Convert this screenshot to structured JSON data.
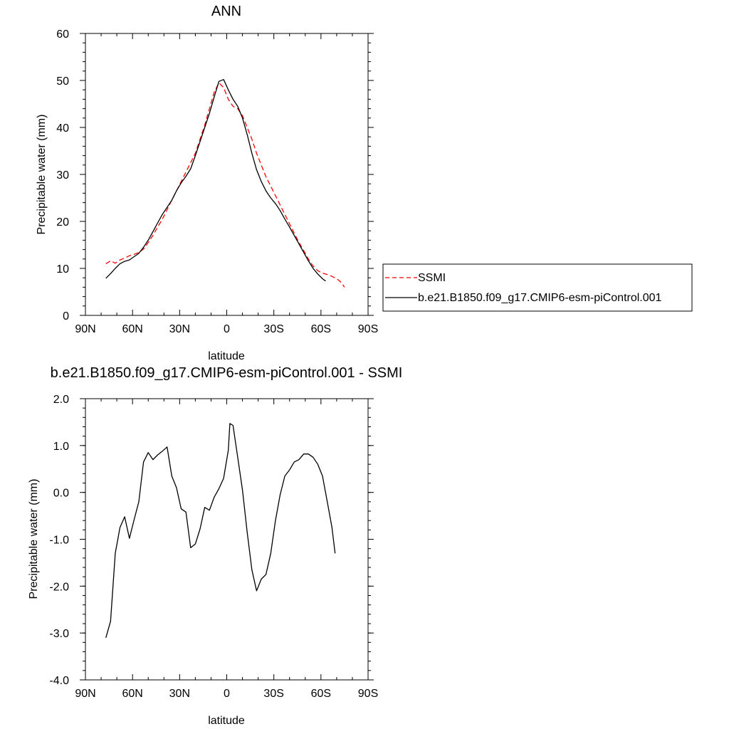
{
  "chart_data": [
    {
      "type": "line",
      "title": "ANN",
      "xlabel": "latitude",
      "ylabel": "Precipitable water (mm)",
      "xlim": [
        90,
        -90
      ],
      "ylim": [
        0,
        60
      ],
      "x_ticks": [
        90,
        60,
        30,
        0,
        -30,
        -60,
        -90
      ],
      "x_tick_labels": [
        "90N",
        "60N",
        "30N",
        "0",
        "30S",
        "60S",
        "90S"
      ],
      "y_ticks": [
        0,
        10,
        20,
        30,
        40,
        50,
        60
      ],
      "y_tick_labels": [
        "0",
        "10",
        "20",
        "30",
        "40",
        "50",
        "60"
      ],
      "grid": false,
      "legend_position": "right",
      "series": [
        {
          "name": "SSMI",
          "color": "#ff0000",
          "dash": "dashed",
          "points": [
            [
              77,
              11.0
            ],
            [
              74,
              11.6
            ],
            [
              71,
              11.1
            ],
            [
              68,
              11.8
            ],
            [
              65,
              12.2
            ],
            [
              62,
              12.7
            ],
            [
              59,
              13.0
            ],
            [
              56,
              13.4
            ],
            [
              53,
              14.1
            ],
            [
              50,
              15.5
            ],
            [
              47,
              17.0
            ],
            [
              44,
              18.8
            ],
            [
              41,
              20.5
            ],
            [
              38,
              22.5
            ],
            [
              35,
              24.5
            ],
            [
              32,
              26.5
            ],
            [
              29,
              28.5
            ],
            [
              26,
              30.5
            ],
            [
              23,
              32.5
            ],
            [
              20,
              34.5
            ],
            [
              17,
              37.5
            ],
            [
              14,
              40.5
            ],
            [
              11,
              44.0
            ],
            [
              8,
              47.5
            ],
            [
              5,
              49.5
            ],
            [
              2,
              48.5
            ],
            [
              -1,
              46.0
            ],
            [
              -4,
              44.5
            ],
            [
              -7,
              44.0
            ],
            [
              -10,
              42.5
            ],
            [
              -13,
              40.0
            ],
            [
              -16,
              37.5
            ],
            [
              -19,
              34.5
            ],
            [
              -22,
              32.0
            ],
            [
              -25,
              29.5
            ],
            [
              -28,
              27.5
            ],
            [
              -31,
              25.5
            ],
            [
              -34,
              23.5
            ],
            [
              -37,
              21.5
            ],
            [
              -40,
              19.5
            ],
            [
              -43,
              17.5
            ],
            [
              -46,
              15.5
            ],
            [
              -49,
              13.8
            ],
            [
              -52,
              12.0
            ],
            [
              -55,
              10.5
            ],
            [
              -58,
              9.5
            ],
            [
              -61,
              9.0
            ],
            [
              -64,
              8.7
            ],
            [
              -67,
              8.3
            ],
            [
              -70,
              7.8
            ],
            [
              -72,
              7.3
            ],
            [
              -74,
              6.5
            ],
            [
              -75,
              6.0
            ]
          ]
        },
        {
          "name": "b.e21.B1850.f09_g17.CMIP6-esm-piControl.001",
          "color": "#000000",
          "dash": "solid",
          "points": [
            [
              77,
              7.9
            ],
            [
              74,
              8.9
            ],
            [
              71,
              10.0
            ],
            [
              68,
              11.0
            ],
            [
              65,
              11.5
            ],
            [
              62,
              11.8
            ],
            [
              59,
              12.5
            ],
            [
              56,
              13.2
            ],
            [
              53,
              14.5
            ],
            [
              50,
              16.0
            ],
            [
              47,
              17.8
            ],
            [
              44,
              19.7
            ],
            [
              41,
              21.5
            ],
            [
              38,
              23.0
            ],
            [
              35,
              24.5
            ],
            [
              32,
              26.5
            ],
            [
              29,
              28.2
            ],
            [
              26,
              29.6
            ],
            [
              23,
              31.2
            ],
            [
              20,
              34.0
            ],
            [
              17,
              37.0
            ],
            [
              14,
              40.0
            ],
            [
              11,
              43.0
            ],
            [
              8,
              46.5
            ],
            [
              5,
              49.8
            ],
            [
              2,
              50.2
            ],
            [
              -1,
              48.0
            ],
            [
              -4,
              46.0
            ],
            [
              -7,
              44.5
            ],
            [
              -10,
              42.0
            ],
            [
              -13,
              38.5
            ],
            [
              -16,
              34.5
            ],
            [
              -19,
              31.0
            ],
            [
              -22,
              28.5
            ],
            [
              -25,
              26.5
            ],
            [
              -28,
              25.0
            ],
            [
              -31,
              23.8
            ],
            [
              -34,
              22.3
            ],
            [
              -37,
              20.5
            ],
            [
              -40,
              18.8
            ],
            [
              -43,
              17.0
            ],
            [
              -46,
              15.2
            ],
            [
              -49,
              13.4
            ],
            [
              -52,
              11.6
            ],
            [
              -55,
              10.0
            ],
            [
              -58,
              8.8
            ],
            [
              -61,
              7.8
            ],
            [
              -63,
              7.3
            ]
          ]
        }
      ]
    },
    {
      "type": "line",
      "title": "b.e21.B1850.f09_g17.CMIP6-esm-piControl.001 - SSMI",
      "xlabel": "latitude",
      "ylabel": "Precipitable water (mm)",
      "xlim": [
        90,
        -90
      ],
      "ylim": [
        -4.0,
        2.0
      ],
      "x_ticks": [
        90,
        60,
        30,
        0,
        -30,
        -60,
        -90
      ],
      "x_tick_labels": [
        "90N",
        "60N",
        "30N",
        "0",
        "30S",
        "60S",
        "90S"
      ],
      "y_ticks": [
        -4,
        -3,
        -2,
        -1,
        0,
        1,
        2
      ],
      "y_tick_labels": [
        "-4.0",
        "-3.0",
        "-2.0",
        "-1.0",
        "0.0",
        "1.0",
        "2.0"
      ],
      "grid": false,
      "series": [
        {
          "color": "#000000",
          "dash": "solid",
          "points": [
            [
              77,
              -3.1
            ],
            [
              74,
              -2.75
            ],
            [
              71,
              -1.3
            ],
            [
              68,
              -0.75
            ],
            [
              65,
              -0.52
            ],
            [
              62,
              -0.98
            ],
            [
              59,
              -0.58
            ],
            [
              56,
              -0.2
            ],
            [
              53,
              0.65
            ],
            [
              50,
              0.85
            ],
            [
              47,
              0.7
            ],
            [
              44,
              0.8
            ],
            [
              41,
              0.88
            ],
            [
              38,
              0.97
            ],
            [
              35,
              0.35
            ],
            [
              32,
              0.1
            ],
            [
              29,
              -0.35
            ],
            [
              26,
              -0.42
            ],
            [
              23,
              -1.18
            ],
            [
              20,
              -1.1
            ],
            [
              17,
              -0.78
            ],
            [
              14,
              -0.32
            ],
            [
              11,
              -0.38
            ],
            [
              8,
              -0.1
            ],
            [
              5,
              0.08
            ],
            [
              2,
              0.3
            ],
            [
              -1,
              0.9
            ],
            [
              -2,
              1.47
            ],
            [
              -4,
              1.43
            ],
            [
              -7,
              0.75
            ],
            [
              -10,
              0.05
            ],
            [
              -13,
              -0.85
            ],
            [
              -16,
              -1.65
            ],
            [
              -19,
              -2.1
            ],
            [
              -22,
              -1.85
            ],
            [
              -25,
              -1.75
            ],
            [
              -28,
              -1.3
            ],
            [
              -31,
              -0.6
            ],
            [
              -34,
              -0.05
            ],
            [
              -37,
              0.35
            ],
            [
              -40,
              0.48
            ],
            [
              -43,
              0.65
            ],
            [
              -46,
              0.7
            ],
            [
              -49,
              0.82
            ],
            [
              -52,
              0.82
            ],
            [
              -55,
              0.75
            ],
            [
              -58,
              0.6
            ],
            [
              -61,
              0.35
            ],
            [
              -64,
              -0.2
            ],
            [
              -67,
              -0.75
            ],
            [
              -69,
              -1.3
            ]
          ]
        }
      ]
    }
  ]
}
